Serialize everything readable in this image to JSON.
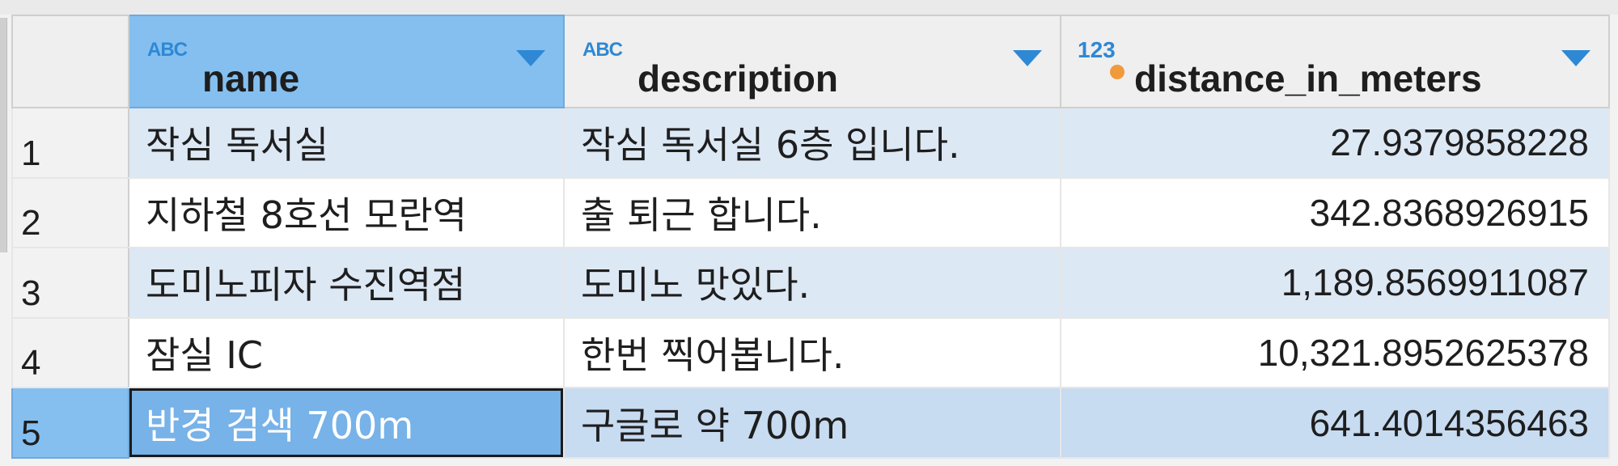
{
  "columns": [
    {
      "label": "name",
      "type_icon": "text-type-icon",
      "type_glyph": "ABC"
    },
    {
      "label": "description",
      "type_icon": "text-type-icon",
      "type_glyph": "ABC"
    },
    {
      "label": "distance_in_meters",
      "type_icon": "numeric-type-icon",
      "type_glyph": "123"
    }
  ],
  "rows": [
    {
      "num": "1",
      "name": "작심 독서실",
      "description": "작심 독서실 6층 입니다.",
      "distance": "27.9379858228"
    },
    {
      "num": "2",
      "name": "지하철 8호선 모란역",
      "description": "출 퇴근 합니다.",
      "distance": "342.8368926915"
    },
    {
      "num": "3",
      "name": "도미노피자 수진역점",
      "description": "도미노 맛있다.",
      "distance": "1,189.8569911087"
    },
    {
      "num": "4",
      "name": "잠실 IC",
      "description": "한번 찍어봅니다.",
      "distance": "10,321.8952625378"
    },
    {
      "num": "5",
      "name": "반경 검색 700m",
      "description": "구글로 약 700m",
      "distance": "641.4014356463"
    }
  ],
  "selection": {
    "row": 5,
    "column": "name"
  },
  "colors": {
    "header_selected": "#84bff0",
    "row_alt": "#dde8f5",
    "row_selected": "#c7dbf1",
    "type_icon": "#2e88d4",
    "numeric_dot": "#f09a3c"
  }
}
